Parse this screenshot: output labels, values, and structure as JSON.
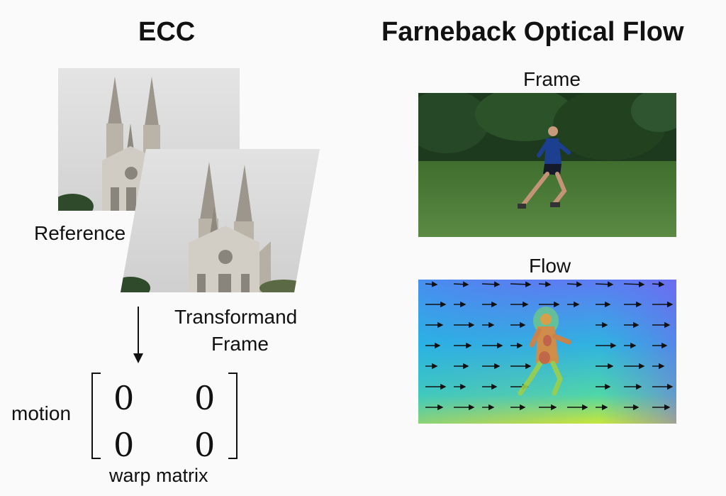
{
  "ecc": {
    "title": "ECC",
    "reference_label": "Reference",
    "transformand_label_line1": "Transformand",
    "transformand_label_line2": "Frame",
    "motion_label": "motion",
    "warp_matrix_label": "warp matrix",
    "matrix": [
      "0",
      "0",
      "0",
      "0"
    ]
  },
  "farneback": {
    "title": "Farneback Optical Flow",
    "frame_label": "Frame",
    "flow_label": "Flow"
  },
  "colors": {
    "background": "#fafafa",
    "text": "#111111",
    "sky": "#dcdcdc",
    "stone": "#d6d1c8",
    "grass": "#4f7d3a",
    "trees": "#1e3a1e",
    "runner_shirt": "#1d3f8f",
    "flow_top": "#6a6af0",
    "flow_mid": "#2fb6d8",
    "flow_bottom": "#c9e83a",
    "flow_runner": "#d06a3a"
  }
}
